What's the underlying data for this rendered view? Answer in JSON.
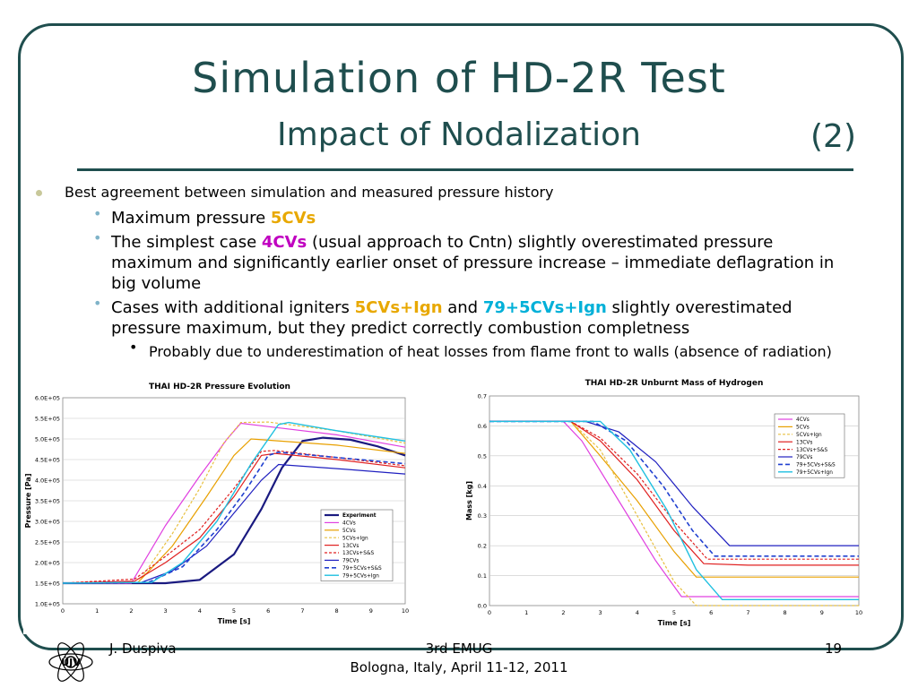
{
  "slide": {
    "title_line1": "Simulation of HD-2R Test",
    "title_line2": "Impact of Nodalization",
    "part": "(2)",
    "bullet1": "Best agreement between simulation and measured pressure history",
    "sub1_pre": "Maximum pressure ",
    "sub1_hl": "5CVs",
    "sub2_pre": "The simplest case ",
    "sub2_hl": "4CVs",
    "sub2_post": " (usual approach to Cntn) slightly overestimated pressure maximum and significantly earlier onset of pressure increase – immediate deflagration in big volume",
    "sub3_pre": "Cases with additional igniters ",
    "sub3_hl1": "5CVs+Ign",
    "sub3_mid": " and ",
    "sub3_hl2": "79+5CVs+Ign",
    "sub3_post": " slightly overestimated pressure maximum, but they predict correctly combustion completness",
    "sub4": "Probably due to underestimation of heat losses from flame front to walls (absence of radiation)"
  },
  "footer": {
    "author": "J. Duspiva",
    "event": "3rd EMUG",
    "place": "Bologna, Italy, April 11-12, 2011",
    "page": "19",
    "logo_text": "ÚJV"
  },
  "chart_data": [
    {
      "type": "line",
      "title": "THAI HD-2R Pressure Evolution",
      "xlabel": "Time [s]",
      "ylabel": "Pressure [Pa]",
      "xlim": [
        0,
        10
      ],
      "ylim": [
        100000,
        600000
      ],
      "xticks": [
        "0",
        "1",
        "2",
        "3",
        "4",
        "5",
        "6",
        "7",
        "8",
        "9",
        "10"
      ],
      "yticks": [
        "1.0E+05",
        "1.5E+05",
        "2.0E+05",
        "2.5E+05",
        "3.0E+05",
        "3.5E+05",
        "4.0E+05",
        "4.5E+05",
        "5.0E+05",
        "5.5E+05",
        "6.0E+05"
      ],
      "legend_position": "bottom-right",
      "series": [
        {
          "name": "Experiment",
          "color": "#1a1a80",
          "dash": "",
          "width": 2.2,
          "points": [
            [
              0,
              150000
            ],
            [
              3,
              150000
            ],
            [
              4,
              158000
            ],
            [
              5,
              220000
            ],
            [
              5.8,
              330000
            ],
            [
              6.4,
              430000
            ],
            [
              7,
              495000
            ],
            [
              7.6,
              503000
            ],
            [
              8.4,
              498000
            ],
            [
              9.2,
              482000
            ],
            [
              10,
              460000
            ]
          ]
        },
        {
          "name": "4CVs",
          "color": "#e040e0",
          "dash": "",
          "width": 1.2,
          "points": [
            [
              0,
              150000
            ],
            [
              2,
              150000
            ],
            [
              3,
              290000
            ],
            [
              4,
              410000
            ],
            [
              4.8,
              500000
            ],
            [
              5.2,
              538000
            ],
            [
              6,
              530000
            ],
            [
              8,
              510000
            ],
            [
              10,
              480000
            ]
          ]
        },
        {
          "name": "5CVs",
          "color": "#e8a000",
          "dash": "",
          "width": 1.2,
          "points": [
            [
              0,
              150000
            ],
            [
              2.2,
              152000
            ],
            [
              3.2,
              240000
            ],
            [
              4.2,
              360000
            ],
            [
              5,
              460000
            ],
            [
              5.5,
              500000
            ],
            [
              6,
              497000
            ],
            [
              8,
              485000
            ],
            [
              10,
              465000
            ]
          ]
        },
        {
          "name": "5CVs+Ign",
          "color": "#e8c040",
          "dash": "3,2",
          "width": 1.2,
          "points": [
            [
              0,
              150000
            ],
            [
              2.2,
              152000
            ],
            [
              3.2,
              270000
            ],
            [
              4,
              380000
            ],
            [
              4.7,
              490000
            ],
            [
              5.2,
              540000
            ],
            [
              6,
              541000
            ],
            [
              8,
              520000
            ],
            [
              10,
              490000
            ]
          ]
        },
        {
          "name": "13CVs",
          "color": "#e02020",
          "dash": "",
          "width": 1.2,
          "points": [
            [
              0,
              150000
            ],
            [
              2.1,
              155000
            ],
            [
              3,
              200000
            ],
            [
              4,
              260000
            ],
            [
              5,
              360000
            ],
            [
              5.8,
              460000
            ],
            [
              6.2,
              465000
            ],
            [
              8,
              450000
            ],
            [
              10,
              430000
            ]
          ]
        },
        {
          "name": "13CVs+S&S",
          "color": "#e02020",
          "dash": "3,2",
          "width": 1.2,
          "points": [
            [
              0,
              150000
            ],
            [
              2.1,
              160000
            ],
            [
              3,
              215000
            ],
            [
              4,
              280000
            ],
            [
              5,
              380000
            ],
            [
              5.8,
              470000
            ],
            [
              6.2,
              472000
            ],
            [
              8,
              455000
            ],
            [
              10,
              435000
            ]
          ]
        },
        {
          "name": "79CVs",
          "color": "#2020c0",
          "dash": "",
          "width": 1.2,
          "points": [
            [
              0,
              150000
            ],
            [
              2.3,
              152000
            ],
            [
              3.2,
              180000
            ],
            [
              4.2,
              240000
            ],
            [
              5,
              320000
            ],
            [
              5.8,
              400000
            ],
            [
              6.3,
              438000
            ],
            [
              8,
              428000
            ],
            [
              10,
              415000
            ]
          ]
        },
        {
          "name": "79+5CVs+S&S",
          "color": "#2040d0",
          "dash": "5,3",
          "width": 1.6,
          "points": [
            [
              0,
              150000
            ],
            [
              2.5,
              152000
            ],
            [
              3.5,
              190000
            ],
            [
              4.5,
              280000
            ],
            [
              5.3,
              370000
            ],
            [
              6,
              460000
            ],
            [
              6.3,
              468000
            ],
            [
              8,
              455000
            ],
            [
              10,
              440000
            ]
          ]
        },
        {
          "name": "79+5CVs+Ign",
          "color": "#20c0e0",
          "dash": "",
          "width": 1.4,
          "points": [
            [
              0,
              150000
            ],
            [
              2.6,
              152000
            ],
            [
              3.5,
              200000
            ],
            [
              4.5,
              300000
            ],
            [
              5.5,
              440000
            ],
            [
              6.3,
              535000
            ],
            [
              6.6,
              540000
            ],
            [
              8,
              520000
            ],
            [
              10,
              495000
            ]
          ]
        }
      ]
    },
    {
      "type": "line",
      "title": "THAI HD-2R Unburnt Mass of Hydrogen",
      "xlabel": "Time [s]",
      "ylabel": "Mass [kg]",
      "xlim": [
        0,
        10
      ],
      "ylim": [
        0,
        0.7
      ],
      "xticks": [
        "0",
        "1",
        "2",
        "3",
        "4",
        "5",
        "6",
        "7",
        "8",
        "9",
        "10"
      ],
      "yticks": [
        "0.0",
        "0.1",
        "0.2",
        "0.3",
        "0.4",
        "0.5",
        "0.6",
        "0.7"
      ],
      "legend_position": "top-right",
      "series": [
        {
          "name": "4CVs",
          "color": "#e040e0",
          "dash": "",
          "width": 1.2,
          "points": [
            [
              0,
              0.615
            ],
            [
              2,
              0.615
            ],
            [
              2.5,
              0.55
            ],
            [
              3.5,
              0.35
            ],
            [
              4.5,
              0.15
            ],
            [
              5.2,
              0.03
            ],
            [
              6,
              0.03
            ],
            [
              10,
              0.03
            ]
          ]
        },
        {
          "name": "5CVs",
          "color": "#e8a000",
          "dash": "",
          "width": 1.2,
          "points": [
            [
              0,
              0.615
            ],
            [
              2.2,
              0.615
            ],
            [
              3,
              0.5
            ],
            [
              4,
              0.35
            ],
            [
              5,
              0.18
            ],
            [
              5.6,
              0.095
            ],
            [
              7,
              0.095
            ],
            [
              10,
              0.095
            ]
          ]
        },
        {
          "name": "5CVs+Ign",
          "color": "#e8c040",
          "dash": "3,2",
          "width": 1.2,
          "points": [
            [
              0,
              0.615
            ],
            [
              2.2,
              0.615
            ],
            [
              3,
              0.52
            ],
            [
              4,
              0.3
            ],
            [
              5,
              0.08
            ],
            [
              5.6,
              0.0
            ],
            [
              10,
              0.0
            ]
          ]
        },
        {
          "name": "13CVs",
          "color": "#e02020",
          "dash": "",
          "width": 1.2,
          "points": [
            [
              0,
              0.615
            ],
            [
              2.2,
              0.615
            ],
            [
              3,
              0.55
            ],
            [
              4,
              0.42
            ],
            [
              5,
              0.25
            ],
            [
              5.8,
              0.14
            ],
            [
              7,
              0.135
            ],
            [
              10,
              0.135
            ]
          ]
        },
        {
          "name": "13CVs+S&S",
          "color": "#e02020",
          "dash": "3,2",
          "width": 1.2,
          "points": [
            [
              0,
              0.615
            ],
            [
              2.2,
              0.615
            ],
            [
              3,
              0.56
            ],
            [
              4,
              0.44
            ],
            [
              5,
              0.28
            ],
            [
              5.9,
              0.155
            ],
            [
              7,
              0.155
            ],
            [
              10,
              0.155
            ]
          ]
        },
        {
          "name": "79CVs",
          "color": "#2020c0",
          "dash": "",
          "width": 1.2,
          "points": [
            [
              0,
              0.615
            ],
            [
              2.6,
              0.615
            ],
            [
              3.5,
              0.58
            ],
            [
              4.5,
              0.48
            ],
            [
              5.5,
              0.33
            ],
            [
              6.5,
              0.2
            ],
            [
              7,
              0.2
            ],
            [
              10,
              0.2
            ]
          ]
        },
        {
          "name": "79+5CVs+S&S",
          "color": "#2040d0",
          "dash": "5,3",
          "width": 1.6,
          "points": [
            [
              0,
              0.615
            ],
            [
              2.8,
              0.615
            ],
            [
              3.7,
              0.55
            ],
            [
              4.7,
              0.4
            ],
            [
              5.5,
              0.25
            ],
            [
              6.1,
              0.165
            ],
            [
              7,
              0.165
            ],
            [
              10,
              0.165
            ]
          ]
        },
        {
          "name": "79+5CVs+Ign",
          "color": "#20c0e0",
          "dash": "",
          "width": 1.4,
          "points": [
            [
              0,
              0.615
            ],
            [
              3,
              0.615
            ],
            [
              3.8,
              0.52
            ],
            [
              4.8,
              0.32
            ],
            [
              5.6,
              0.12
            ],
            [
              6.3,
              0.02
            ],
            [
              7,
              0.02
            ],
            [
              10,
              0.02
            ]
          ]
        }
      ]
    }
  ]
}
